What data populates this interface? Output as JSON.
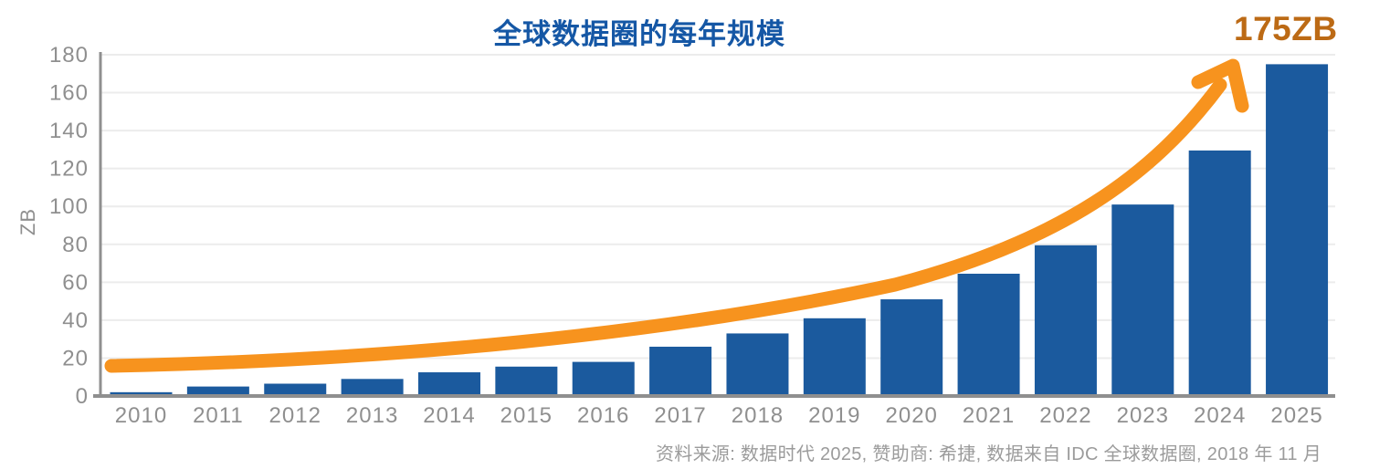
{
  "chart_data": {
    "type": "bar",
    "title": "全球数据圈的每年规模",
    "ylabel": "ZB",
    "xlabel": "",
    "categories": [
      "2010",
      "2011",
      "2012",
      "2013",
      "2014",
      "2015",
      "2016",
      "2017",
      "2018",
      "2019",
      "2020",
      "2021",
      "2022",
      "2023",
      "2024",
      "2025"
    ],
    "values": [
      2,
      5,
      6.5,
      9,
      12.5,
      15.5,
      18,
      26,
      33,
      41,
      51,
      64.5,
      79.5,
      101,
      129.5,
      175
    ],
    "ylim": [
      0,
      180
    ],
    "yticks": [
      0,
      20,
      40,
      60,
      80,
      100,
      120,
      140,
      160,
      180
    ],
    "grid": true,
    "legend_position": "none",
    "annotation": "175ZB",
    "trend_arrow": true,
    "source_note": "资料来源: 数据时代 2025, 赞助商: 希捷, 数据来自 IDC 全球数据圈, 2018 年 11 月"
  },
  "colors": {
    "bar": "#1b5a9e",
    "trend": "#f7931e",
    "annotation": "#bc6a15",
    "title": "#1557a5",
    "axis": "#8f8f8f",
    "grid": "#ececec",
    "tick_label": "#8f8f8f",
    "source": "#9b9b9b"
  }
}
